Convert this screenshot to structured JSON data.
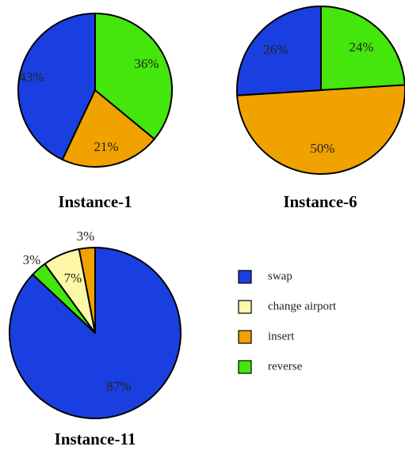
{
  "colors": {
    "swap": "#1a3fe0",
    "change airport": "#fff7a8",
    "insert": "#f0a200",
    "reverse": "#44e60c"
  },
  "legend": [
    "swap",
    "change airport",
    "insert",
    "reverse"
  ],
  "chart_data": [
    {
      "type": "pie",
      "title": "Instance-1",
      "slices": [
        {
          "category": "reverse",
          "value": 36,
          "label": "36%"
        },
        {
          "category": "insert",
          "value": 21,
          "label": "21%"
        },
        {
          "category": "swap",
          "value": 43,
          "label": "43%"
        }
      ]
    },
    {
      "type": "pie",
      "title": "Instance-6",
      "slices": [
        {
          "category": "reverse",
          "value": 24,
          "label": "24%"
        },
        {
          "category": "insert",
          "value": 50,
          "label": "50%"
        },
        {
          "category": "swap",
          "value": 26,
          "label": "26%"
        }
      ]
    },
    {
      "type": "pie",
      "title": "Instance-11",
      "slices": [
        {
          "category": "swap",
          "value": 87,
          "label": "87%"
        },
        {
          "category": "reverse",
          "value": 3,
          "label": "3%"
        },
        {
          "category": "change airport",
          "value": 7,
          "label": "7%"
        },
        {
          "category": "insert",
          "value": 3,
          "label": "3%"
        }
      ]
    }
  ]
}
